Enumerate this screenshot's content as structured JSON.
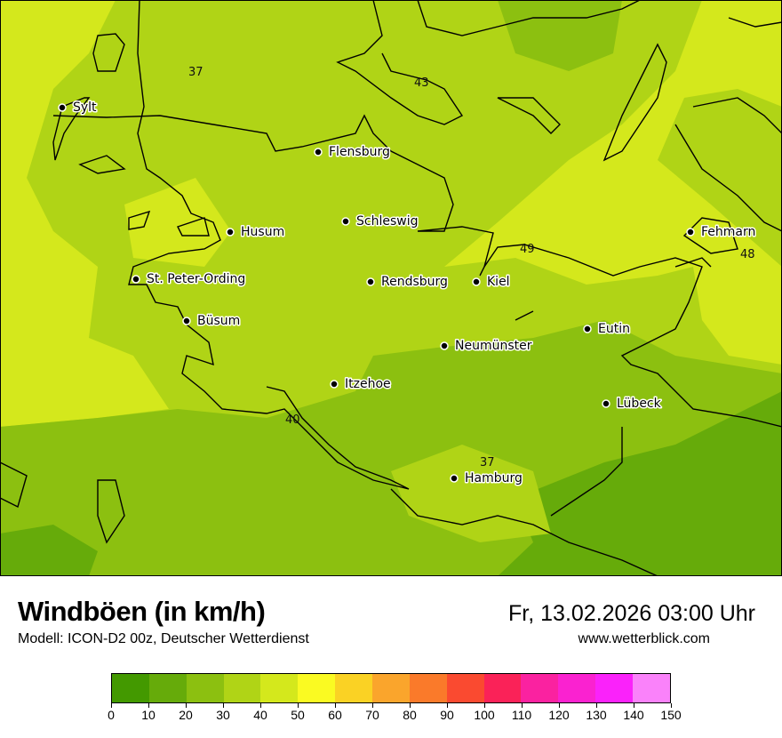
{
  "header": {
    "title": "Windböen (in km/h)",
    "subtitle": "Modell: ICON-D2 00z, Deutscher Wetterdienst",
    "datetime": "Fr, 13.02.2026 03:00 Uhr",
    "website": "www.wetterblick.com"
  },
  "map": {
    "cities": [
      "Sylt",
      "Flensburg",
      "Schleswig",
      "Husum",
      "St. Peter-Ording",
      "Rendsburg",
      "Kiel",
      "Fehmarn",
      "Büsum",
      "Neumünster",
      "Eutin",
      "Itzehoe",
      "Lübeck",
      "Hamburg"
    ],
    "contour_labels": [
      "37",
      "43",
      "49",
      "48",
      "40",
      "37"
    ]
  },
  "legend": {
    "ticks": [
      "0",
      "10",
      "20",
      "30",
      "40",
      "50",
      "60",
      "70",
      "80",
      "90",
      "100",
      "110",
      "120",
      "130",
      "140",
      "150"
    ],
    "colors": [
      "#439900",
      "#66ab0a",
      "#8cc010",
      "#b0d416",
      "#d4e81c",
      "#fafa22",
      "#fad224",
      "#faa52c",
      "#fa7a2a",
      "#fa4a30",
      "#fa2258",
      "#fa22a0",
      "#fa22d0",
      "#fa22fa",
      "#fa82fa"
    ]
  }
}
